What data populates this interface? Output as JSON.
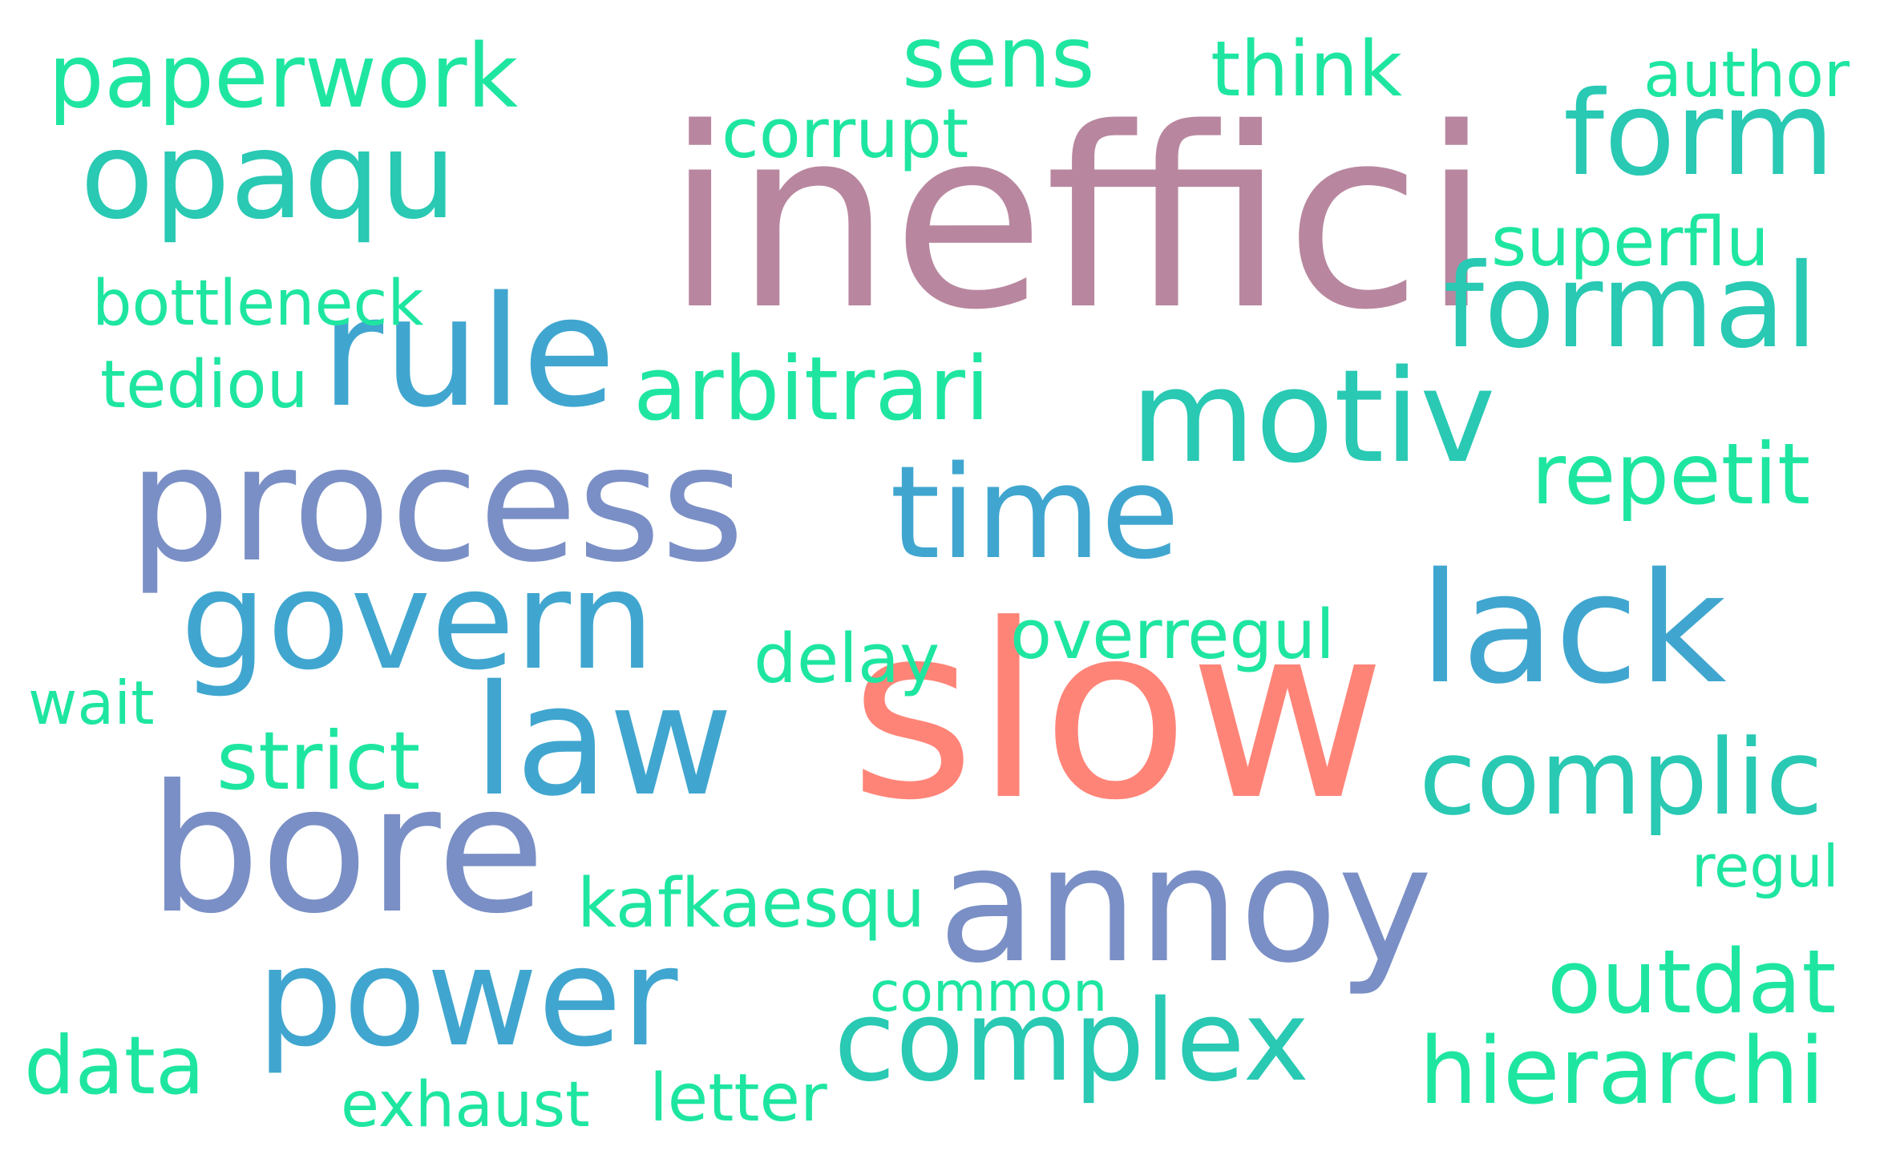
{
  "wordcloud": {
    "words": [
      {
        "id": "inefficient",
        "text": "ineffici",
        "color": "#b8879f"
      },
      {
        "id": "slow",
        "text": "slow",
        "color": "#ff8478"
      },
      {
        "id": "process",
        "text": "process",
        "color": "#7a8fc5"
      },
      {
        "id": "bore",
        "text": "bore",
        "color": "#7a8fc5"
      },
      {
        "id": "annoy",
        "text": "annoy",
        "color": "#7a8fc5"
      },
      {
        "id": "rule",
        "text": "rule",
        "color": "#40a6cf"
      },
      {
        "id": "govern",
        "text": "govern",
        "color": "#40a6cf"
      },
      {
        "id": "law",
        "text": "law",
        "color": "#40a6cf"
      },
      {
        "id": "power",
        "text": "power",
        "color": "#40a6cf"
      },
      {
        "id": "time",
        "text": "time",
        "color": "#40a6cf"
      },
      {
        "id": "lack",
        "text": "lack",
        "color": "#40a6cf"
      },
      {
        "id": "opaque",
        "text": "opaqu",
        "color": "#29c9b3"
      },
      {
        "id": "motiv",
        "text": "motiv",
        "color": "#29c9b3"
      },
      {
        "id": "form",
        "text": "form",
        "color": "#29c9b3"
      },
      {
        "id": "formal",
        "text": "formal",
        "color": "#29c9b3"
      },
      {
        "id": "complic",
        "text": "complic",
        "color": "#29c9b3"
      },
      {
        "id": "complex",
        "text": "complex",
        "color": "#29c9b3"
      },
      {
        "id": "paperwork",
        "text": "paperwork",
        "color": "#1ee6a0"
      },
      {
        "id": "sens",
        "text": "sens",
        "color": "#1ee6a0"
      },
      {
        "id": "think",
        "text": "think",
        "color": "#1ee6a0"
      },
      {
        "id": "author",
        "text": "author",
        "color": "#1ee6a0"
      },
      {
        "id": "corrupt",
        "text": "corrupt",
        "color": "#1ee6a0"
      },
      {
        "id": "superflu",
        "text": "superflu",
        "color": "#1ee6a0"
      },
      {
        "id": "bottleneck",
        "text": "bottleneck",
        "color": "#1ee6a0"
      },
      {
        "id": "tediou",
        "text": "tediou",
        "color": "#1ee6a0"
      },
      {
        "id": "arbitrari",
        "text": "arbitrari",
        "color": "#1ee6a0"
      },
      {
        "id": "repetit",
        "text": "repetit",
        "color": "#1ee6a0"
      },
      {
        "id": "delay",
        "text": "delay",
        "color": "#1ee6a0"
      },
      {
        "id": "overregul",
        "text": "overregul",
        "color": "#1ee6a0"
      },
      {
        "id": "wait",
        "text": "wait",
        "color": "#1ee6a0"
      },
      {
        "id": "strict",
        "text": "strict",
        "color": "#1ee6a0"
      },
      {
        "id": "regul",
        "text": "regul",
        "color": "#1ee6a0"
      },
      {
        "id": "kafkaesqu",
        "text": "kafkaesqu",
        "color": "#1ee6a0"
      },
      {
        "id": "outdat",
        "text": "outdat",
        "color": "#1ee6a0"
      },
      {
        "id": "common",
        "text": "common",
        "color": "#1ee6a0"
      },
      {
        "id": "data",
        "text": "data",
        "color": "#1ee6a0"
      },
      {
        "id": "exhaust",
        "text": "exhaust",
        "color": "#1ee6a0"
      },
      {
        "id": "letter",
        "text": "letter",
        "color": "#1ee6a0"
      },
      {
        "id": "hierarchi",
        "text": "hierarchi",
        "color": "#1ee6a0"
      }
    ]
  }
}
